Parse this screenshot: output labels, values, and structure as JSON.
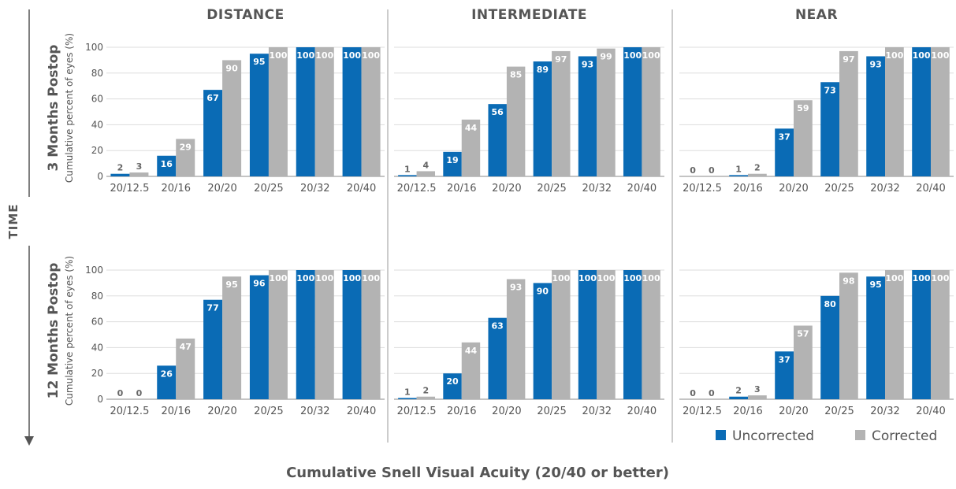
{
  "chart_data": {
    "type": "bar",
    "columns": [
      "DISTANCE",
      "INTERMEDIATE",
      "NEAR"
    ],
    "rows": [
      "3 Months Postop",
      "12 Months Postop"
    ],
    "ylabel": "Cumulative percent of eyes (%)",
    "xtitle": "Cumulative Snell Visual Acuity (20/40 or better)",
    "time_label": "TIME",
    "categories": [
      "20/12.5",
      "20/16",
      "20/20",
      "20/25",
      "20/32",
      "20/40"
    ],
    "ylim": [
      0,
      100
    ],
    "yticks": [
      0,
      20,
      40,
      60,
      80,
      100
    ],
    "grid": true,
    "legend_position": "bottom-right",
    "legend": [
      {
        "name": "Uncorrected",
        "color": "#0a6bb5"
      },
      {
        "name": "Corrected",
        "color": "#b3b3b3"
      }
    ],
    "panels": [
      {
        "row": "3 Months Postop",
        "column": "DISTANCE",
        "uncorrected": [
          2,
          16,
          67,
          95,
          100,
          100
        ],
        "corrected": [
          3,
          29,
          90,
          100,
          100,
          100
        ]
      },
      {
        "row": "3 Months Postop",
        "column": "INTERMEDIATE",
        "uncorrected": [
          1,
          19,
          56,
          89,
          93,
          100
        ],
        "corrected": [
          4,
          44,
          85,
          97,
          99,
          100
        ]
      },
      {
        "row": "3 Months Postop",
        "column": "NEAR",
        "uncorrected": [
          0,
          1,
          37,
          73,
          93,
          100
        ],
        "corrected": [
          0,
          2,
          59,
          97,
          100,
          100
        ]
      },
      {
        "row": "12 Months Postop",
        "column": "DISTANCE",
        "uncorrected": [
          0,
          26,
          77,
          96,
          100,
          100
        ],
        "corrected": [
          0,
          47,
          95,
          100,
          100,
          100
        ]
      },
      {
        "row": "12 Months Postop",
        "column": "INTERMEDIATE",
        "uncorrected": [
          1,
          20,
          63,
          90,
          100,
          100
        ],
        "corrected": [
          2,
          44,
          93,
          100,
          100,
          100
        ]
      },
      {
        "row": "12 Months Postop",
        "column": "NEAR",
        "uncorrected": [
          0,
          2,
          37,
          80,
          95,
          100
        ],
        "corrected": [
          0,
          3,
          57,
          98,
          100,
          100
        ]
      }
    ]
  }
}
